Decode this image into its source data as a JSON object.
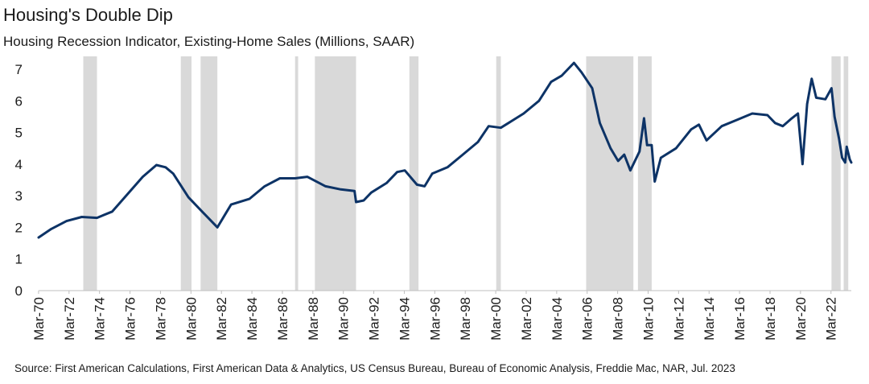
{
  "chart_data": {
    "type": "line",
    "title": "Housing's Double Dip",
    "subtitle": "Housing Recession Indicator, Existing-Home Sales (Millions, SAAR)",
    "source": "Source: First American Calculations, First American Data & Analytics, US Census Bureau, Bureau of Economic Analysis, Freddie Mac, NAR, Jul. 2023",
    "x_range": [
      1970.17,
      2023.5
    ],
    "ylim": [
      0,
      7
    ],
    "yticks": [
      0,
      1,
      2,
      3,
      4,
      5,
      6,
      7
    ],
    "xticks": [
      "Mar-70",
      "Mar-72",
      "Mar-74",
      "Mar-76",
      "Mar-78",
      "Mar-80",
      "Mar-82",
      "Mar-84",
      "Mar-86",
      "Mar-88",
      "Mar-90",
      "Mar-92",
      "Mar-94",
      "Mar-96",
      "Mar-98",
      "Mar-00",
      "Mar-02",
      "Mar-04",
      "Mar-06",
      "Mar-08",
      "Mar-10",
      "Mar-12",
      "Mar-14",
      "Mar-16",
      "Mar-18",
      "Mar-20",
      "Mar-22"
    ],
    "line_color": "#0d3366",
    "shade_color": "#d9d9d9",
    "recession_indicator_periods": [
      [
        1973.1,
        1974.0
      ],
      [
        1979.5,
        1980.2
      ],
      [
        1980.8,
        1981.9
      ],
      [
        1987.0,
        1987.2
      ],
      [
        1988.3,
        1991.0
      ],
      [
        1994.5,
        1995.1
      ],
      [
        2000.2,
        2000.5
      ],
      [
        2006.1,
        2009.2
      ],
      [
        2009.5,
        2010.4
      ],
      [
        2022.2,
        2022.8
      ],
      [
        2023.0,
        2023.3
      ]
    ],
    "series": [
      {
        "values": [
          [
            1970.17,
            1.68
          ],
          [
            1971.0,
            1.95
          ],
          [
            1972.0,
            2.2
          ],
          [
            1973.0,
            2.33
          ],
          [
            1974.0,
            2.3
          ],
          [
            1975.0,
            2.5
          ],
          [
            1976.0,
            3.05
          ],
          [
            1977.0,
            3.6
          ],
          [
            1977.9,
            3.97
          ],
          [
            1978.5,
            3.9
          ],
          [
            1979.0,
            3.7
          ],
          [
            1980.0,
            2.95
          ],
          [
            1981.0,
            2.45
          ],
          [
            1981.9,
            2.0
          ],
          [
            1982.4,
            2.4
          ],
          [
            1982.8,
            2.72
          ],
          [
            1984.0,
            2.9
          ],
          [
            1985.0,
            3.3
          ],
          [
            1986.0,
            3.55
          ],
          [
            1987.0,
            3.55
          ],
          [
            1987.8,
            3.6
          ],
          [
            1989.0,
            3.3
          ],
          [
            1990.0,
            3.2
          ],
          [
            1990.9,
            3.15
          ],
          [
            1991.0,
            2.8
          ],
          [
            1991.5,
            2.85
          ],
          [
            1992.0,
            3.1
          ],
          [
            1993.0,
            3.4
          ],
          [
            1993.7,
            3.75
          ],
          [
            1994.2,
            3.8
          ],
          [
            1995.0,
            3.35
          ],
          [
            1995.5,
            3.3
          ],
          [
            1996.0,
            3.7
          ],
          [
            1997.0,
            3.9
          ],
          [
            1998.0,
            4.3
          ],
          [
            1999.0,
            4.7
          ],
          [
            1999.7,
            5.2
          ],
          [
            2000.5,
            5.15
          ],
          [
            2001.0,
            5.3
          ],
          [
            2002.0,
            5.6
          ],
          [
            2003.0,
            6.0
          ],
          [
            2003.8,
            6.6
          ],
          [
            2004.5,
            6.8
          ],
          [
            2005.3,
            7.2
          ],
          [
            2005.8,
            6.9
          ],
          [
            2006.5,
            6.4
          ],
          [
            2007.0,
            5.3
          ],
          [
            2007.7,
            4.5
          ],
          [
            2008.2,
            4.1
          ],
          [
            2008.6,
            4.3
          ],
          [
            2009.0,
            3.8
          ],
          [
            2009.6,
            4.4
          ],
          [
            2009.9,
            5.45
          ],
          [
            2010.1,
            4.6
          ],
          [
            2010.4,
            4.6
          ],
          [
            2010.6,
            3.45
          ],
          [
            2011.0,
            4.2
          ],
          [
            2012.0,
            4.5
          ],
          [
            2013.0,
            5.1
          ],
          [
            2013.5,
            5.25
          ],
          [
            2014.0,
            4.75
          ],
          [
            2015.0,
            5.2
          ],
          [
            2016.0,
            5.4
          ],
          [
            2017.0,
            5.6
          ],
          [
            2018.0,
            5.55
          ],
          [
            2018.5,
            5.3
          ],
          [
            2019.0,
            5.2
          ],
          [
            2019.6,
            5.45
          ],
          [
            2020.0,
            5.6
          ],
          [
            2020.3,
            4.0
          ],
          [
            2020.6,
            5.9
          ],
          [
            2020.9,
            6.7
          ],
          [
            2021.2,
            6.1
          ],
          [
            2021.8,
            6.05
          ],
          [
            2022.2,
            6.4
          ],
          [
            2022.4,
            5.5
          ],
          [
            2022.7,
            4.8
          ],
          [
            2022.9,
            4.2
          ],
          [
            2023.1,
            4.05
          ],
          [
            2023.2,
            4.55
          ],
          [
            2023.4,
            4.15
          ],
          [
            2023.5,
            4.05
          ]
        ]
      }
    ]
  }
}
